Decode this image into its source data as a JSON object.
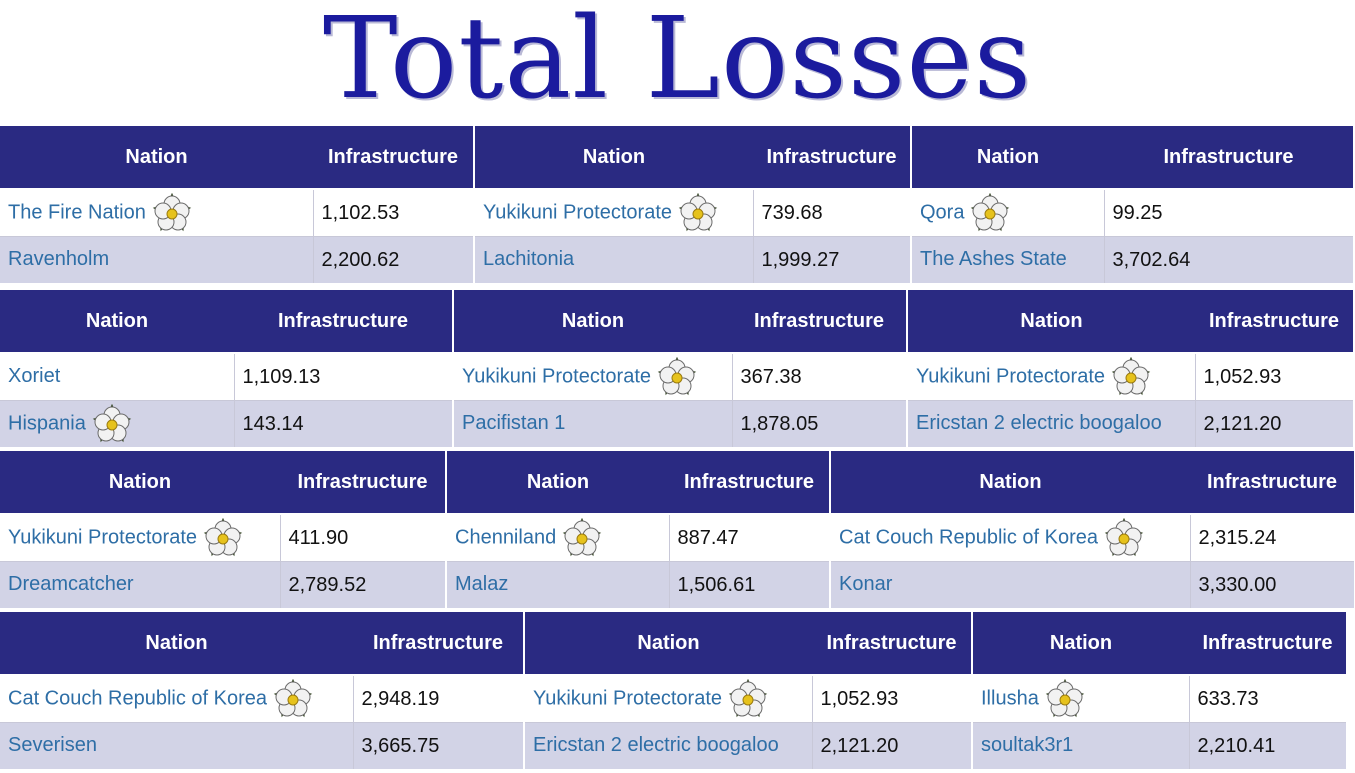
{
  "title": "Total Losses",
  "columns": {
    "nation": "Nation",
    "infra": "Infrastructure"
  },
  "rose_icon": "white-rose-icon",
  "blocks": [
    {
      "tables": [
        {
          "rows": [
            {
              "nation": "The Fire Nation",
              "rose": true,
              "infra": "1,102.53"
            },
            {
              "nation": "Ravenholm",
              "rose": false,
              "infra": "2,200.62"
            }
          ]
        },
        {
          "rows": [
            {
              "nation": "Yukikuni Protectorate",
              "rose": true,
              "infra": "739.68"
            },
            {
              "nation": "Lachitonia",
              "rose": false,
              "infra": "1,999.27"
            }
          ]
        },
        {
          "rows": [
            {
              "nation": "Qora",
              "rose": true,
              "infra": "99.25"
            },
            {
              "nation": "The Ashes State",
              "rose": false,
              "infra": "3,702.64"
            }
          ]
        }
      ]
    },
    {
      "tables": [
        {
          "rows": [
            {
              "nation": "Xoriet",
              "rose": false,
              "infra": "1,109.13"
            },
            {
              "nation": "Hispania",
              "rose": true,
              "infra": "143.14"
            }
          ]
        },
        {
          "rows": [
            {
              "nation": "Yukikuni Protectorate",
              "rose": true,
              "infra": "367.38"
            },
            {
              "nation": "Pacifistan 1",
              "rose": false,
              "infra": "1,878.05"
            }
          ]
        },
        {
          "rows": [
            {
              "nation": "Yukikuni Protectorate",
              "rose": true,
              "infra": "1,052.93"
            },
            {
              "nation": "Ericstan 2 electric boogaloo",
              "rose": false,
              "infra": "2,121.20"
            }
          ]
        }
      ]
    },
    {
      "tables": [
        {
          "rows": [
            {
              "nation": "Yukikuni Protectorate",
              "rose": true,
              "infra": "411.90"
            },
            {
              "nation": "Dreamcatcher",
              "rose": false,
              "infra": "2,789.52"
            }
          ]
        },
        {
          "rows": [
            {
              "nation": "Chenniland",
              "rose": true,
              "infra": "887.47"
            },
            {
              "nation": "Malaz",
              "rose": false,
              "infra": "1,506.61"
            }
          ]
        },
        {
          "rows": [
            {
              "nation": "Cat Couch Republic of Korea",
              "rose": true,
              "infra": "2,315.24"
            },
            {
              "nation": "Konar",
              "rose": false,
              "infra": "3,330.00"
            }
          ]
        }
      ]
    },
    {
      "tables": [
        {
          "rows": [
            {
              "nation": "Cat Couch Republic of Korea",
              "rose": true,
              "infra": "2,948.19"
            },
            {
              "nation": "Severisen",
              "rose": false,
              "infra": "3,665.75"
            }
          ]
        },
        {
          "rows": [
            {
              "nation": "Yukikuni Protectorate",
              "rose": true,
              "infra": "1,052.93"
            },
            {
              "nation": "Ericstan 2 electric boogaloo",
              "rose": false,
              "infra": "2,121.20"
            }
          ]
        },
        {
          "rows": [
            {
              "nation": "Illusha",
              "rose": true,
              "infra": "633.73"
            },
            {
              "nation": "soultak3r1",
              "rose": false,
              "infra": "2,210.41"
            }
          ]
        }
      ]
    }
  ]
}
